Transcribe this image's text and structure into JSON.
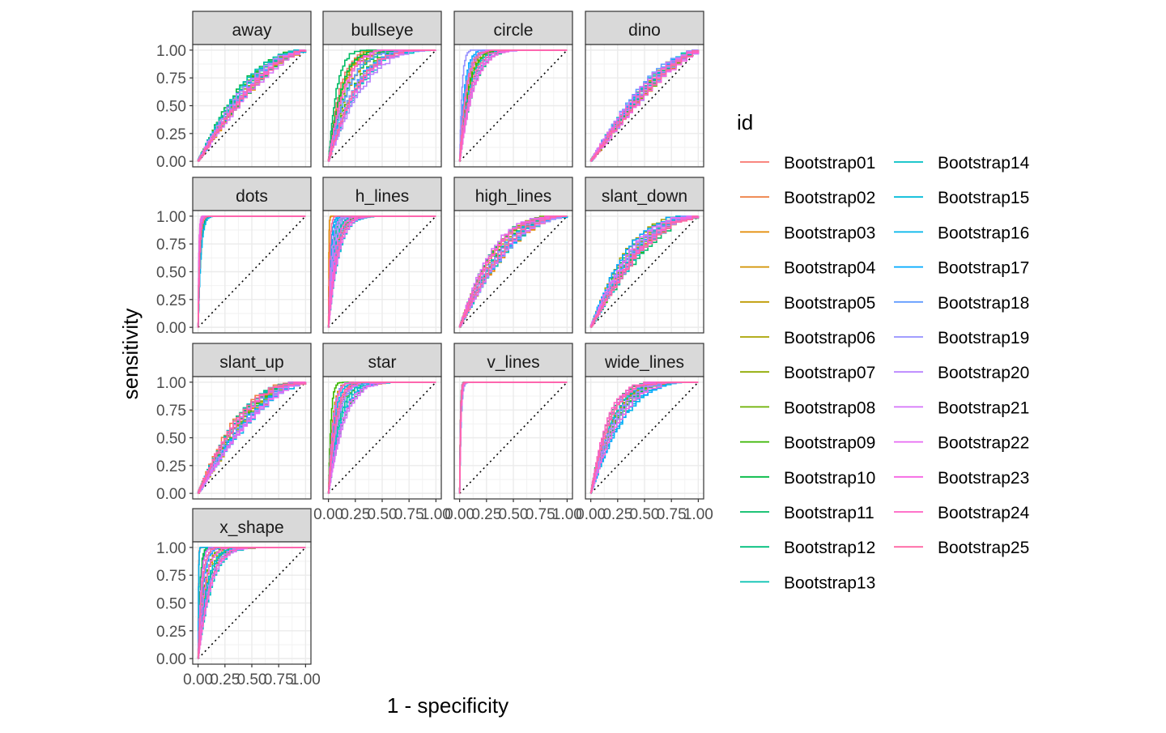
{
  "chart_data": {
    "type": "line",
    "chart_kind": "ROC curves faceted by dataset",
    "xlabel": "1 - specificity",
    "ylabel": "sensitivity",
    "xlim": [
      0,
      1
    ],
    "ylim": [
      0,
      1
    ],
    "x_ticks": [
      "0.00",
      "0.25",
      "0.50",
      "0.75",
      "1.00"
    ],
    "y_ticks": [
      "0.00",
      "0.25",
      "0.50",
      "0.75",
      "1.00"
    ],
    "grid": true,
    "reference_line": "diagonal dotted",
    "legend": {
      "title": "id",
      "position": "right",
      "columns": 2
    },
    "series_names": [
      "Bootstrap01",
      "Bootstrap02",
      "Bootstrap03",
      "Bootstrap04",
      "Bootstrap05",
      "Bootstrap06",
      "Bootstrap07",
      "Bootstrap08",
      "Bootstrap09",
      "Bootstrap10",
      "Bootstrap11",
      "Bootstrap12",
      "Bootstrap13",
      "Bootstrap14",
      "Bootstrap15",
      "Bootstrap16",
      "Bootstrap17",
      "Bootstrap18",
      "Bootstrap19",
      "Bootstrap20",
      "Bootstrap21",
      "Bootstrap22",
      "Bootstrap23",
      "Bootstrap24",
      "Bootstrap25"
    ],
    "series_colors": [
      "#F8766D",
      "#EE8043",
      "#E38900",
      "#D29100",
      "#BF9A00",
      "#A9A300",
      "#8FAA00",
      "#6CB000",
      "#39B600",
      "#00BA43",
      "#00BC64",
      "#00BF7D",
      "#00C0AF",
      "#00BFC4",
      "#00BBD9",
      "#00B6EB",
      "#00A9FF",
      "#619CFF",
      "#9590FF",
      "#B983FF",
      "#D573F9",
      "#E76BF3",
      "#F564E3",
      "#FF61C3",
      "#FF67A4"
    ],
    "facets": [
      {
        "name": "away",
        "curve_shape": 0.55,
        "spread": 0.05
      },
      {
        "name": "bullseye",
        "curve_shape": 0.22,
        "spread": 0.06
      },
      {
        "name": "circle",
        "curve_shape": 0.06,
        "spread": 0.03
      },
      {
        "name": "dino",
        "curve_shape": 0.65,
        "spread": 0.05
      },
      {
        "name": "dots",
        "curve_shape": 0.015,
        "spread": 0.01
      },
      {
        "name": "h_lines",
        "curve_shape": 0.05,
        "spread": 0.02
      },
      {
        "name": "high_lines",
        "curve_shape": 0.38,
        "spread": 0.05
      },
      {
        "name": "slant_down",
        "curve_shape": 0.42,
        "spread": 0.06
      },
      {
        "name": "slant_up",
        "curve_shape": 0.48,
        "spread": 0.06
      },
      {
        "name": "star",
        "curve_shape": 0.08,
        "spread": 0.03
      },
      {
        "name": "v_lines",
        "curve_shape": 0.008,
        "spread": 0.005
      },
      {
        "name": "wide_lines",
        "curve_shape": 0.22,
        "spread": 0.04
      },
      {
        "name": "x_shape",
        "curve_shape": 0.06,
        "spread": 0.03
      }
    ]
  }
}
